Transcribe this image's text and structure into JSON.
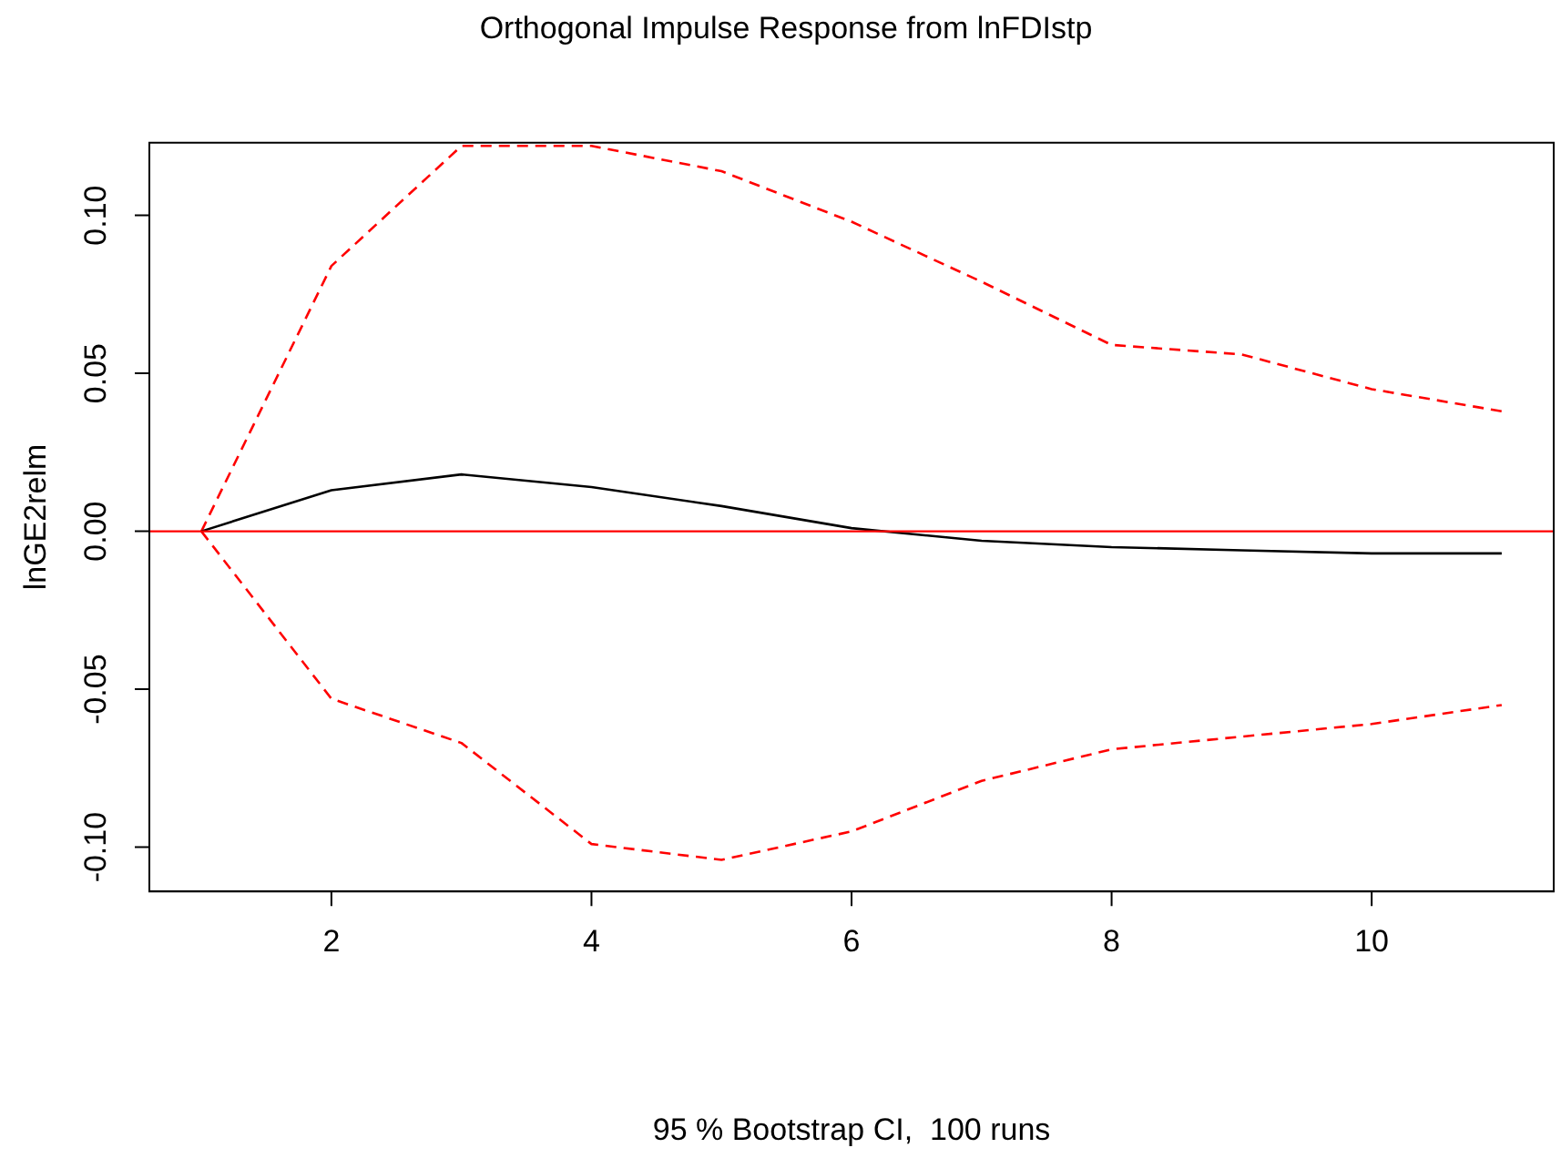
{
  "chart_data": {
    "type": "line",
    "title": "Orthogonal Impulse Response from lnFDIstp",
    "annotations": [
      "95 % Bootstrap CI,  100 runs"
    ],
    "ylabel": "lnGE2relm",
    "x": [
      1,
      2,
      3,
      4,
      5,
      6,
      7,
      8,
      9,
      10,
      11
    ],
    "series": [
      {
        "color": "#000000",
        "values": [
          0,
          0.013,
          0.018,
          0.014,
          0.008,
          0.001,
          -0.003,
          -0.005,
          -0.006,
          -0.007,
          -0.007
        ]
      },
      {
        "color": "#ff0000",
        "line_style": "dashed",
        "values": [
          0,
          0.084,
          0.122,
          0.122,
          0.114,
          0.098,
          0.079,
          0.059,
          0.056,
          0.045,
          0.038
        ]
      },
      {
        "color": "#ff0000",
        "line_style": "dashed",
        "values": [
          0,
          -0.053,
          -0.067,
          -0.099,
          -0.104,
          -0.095,
          -0.079,
          -0.069,
          -0.065,
          -0.061,
          -0.055
        ]
      }
    ],
    "xlim": [
      0.6,
      11.4
    ],
    "xticks": [
      2,
      4,
      6,
      8,
      10
    ],
    "ylim": [
      -0.114,
      0.123
    ],
    "yticks": [
      {
        "value": -0.1,
        "label": "-0.10"
      },
      {
        "value": -0.05,
        "label": "-0.05"
      },
      {
        "value": 0,
        "label": "0.00"
      },
      {
        "value": 0.05,
        "label": "0.05"
      },
      {
        "value": 0.1,
        "label": "0.10"
      }
    ],
    "ref_lines": [
      {
        "axis": "y",
        "value": 0,
        "color": "#ff0000"
      }
    ],
    "grid": false,
    "legend": false,
    "marker": "none"
  }
}
